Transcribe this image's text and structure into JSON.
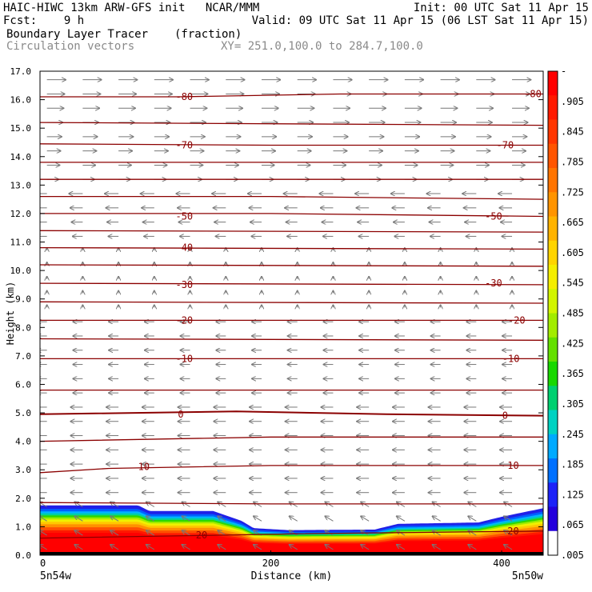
{
  "header": {
    "line1_left": "HAIC-HIWC 13km ARW-GFS init   NCAR/MMM",
    "line1_right": "Init: 00 UTC Sat 11 Apr 15",
    "line2_left": "Fcst:    9 h",
    "line2_right": "Valid: 09 UTC Sat 11 Apr 15 (06 LST Sat 11 Apr 15)",
    "line3_left": "Boundary Layer Tracer",
    "line3_mid": "(fraction)",
    "line4_left": "Circulation vectors",
    "line4_mid": "XY= 251.0,100.0 to 284.7,100.0"
  },
  "chart_data": {
    "type": "heatmap",
    "xlabel": "Distance (km)",
    "ylabel": "Height (km)",
    "xlim": [
      0,
      436
    ],
    "ylim": [
      0,
      17
    ],
    "x_ticks": [
      0,
      200,
      400
    ],
    "x_tick_labels": [
      "0",
      "200",
      "400"
    ],
    "x_end_labels": [
      "5n54w",
      "5n50w"
    ],
    "y_ticks": [
      0,
      1,
      2,
      3,
      4,
      5,
      6,
      7,
      8,
      9,
      10,
      11,
      12,
      13,
      14,
      15,
      16,
      17
    ],
    "y_tick_labels": [
      "0.0",
      "1.0",
      "2.0",
      "3.0",
      "4.0",
      "5.0",
      "6.0",
      "7.0",
      "8.0",
      "9.0",
      "10.0",
      "11.0",
      "12.0",
      "13.0",
      "14.0",
      "15.0",
      "16.0",
      "17.0"
    ],
    "colorbar": {
      "labels": [
        "-",
        ".905",
        ".845",
        ".785",
        ".725",
        ".665",
        ".605",
        ".545",
        ".485",
        ".425",
        ".365",
        ".305",
        ".245",
        ".185",
        ".125",
        ".065",
        ".005"
      ],
      "colors": [
        "#ff0000",
        "#ff1a00",
        "#ff3600",
        "#ff5500",
        "#ff7400",
        "#ff9400",
        "#ffb300",
        "#ffd400",
        "#f5ee00",
        "#d2f500",
        "#a2ec00",
        "#64e000",
        "#18d800",
        "#00d070",
        "#00d2c2",
        "#00aaff",
        "#0070ff",
        "#1c22f8",
        "#2400dc",
        "#ffffff"
      ]
    },
    "tracer_top_km": [
      {
        "x": 0,
        "y": 1.75
      },
      {
        "x": 85,
        "y": 1.75
      },
      {
        "x": 95,
        "y": 1.55
      },
      {
        "x": 150,
        "y": 1.55
      },
      {
        "x": 175,
        "y": 1.2
      },
      {
        "x": 185,
        "y": 0.95
      },
      {
        "x": 215,
        "y": 0.88
      },
      {
        "x": 290,
        "y": 0.9
      },
      {
        "x": 310,
        "y": 1.1
      },
      {
        "x": 380,
        "y": 1.15
      },
      {
        "x": 400,
        "y": 1.35
      },
      {
        "x": 436,
        "y": 1.65
      }
    ],
    "temperature_contours": [
      {
        "label": "-80",
        "points": [
          [
            0,
            16.1
          ],
          [
            120,
            16.1
          ],
          [
            260,
            16.2
          ],
          [
            436,
            16.2
          ]
        ],
        "label_positions": [
          [
            125,
            16.1
          ],
          [
            427,
            16.2
          ]
        ]
      },
      {
        "label": null,
        "points": [
          [
            0,
            15.2
          ],
          [
            436,
            15.1
          ]
        ],
        "label_positions": []
      },
      {
        "label": "-70",
        "points": [
          [
            0,
            14.45
          ],
          [
            200,
            14.4
          ],
          [
            436,
            14.4
          ]
        ],
        "label_positions": [
          [
            125,
            14.4
          ],
          [
            403,
            14.4
          ]
        ]
      },
      {
        "label": null,
        "points": [
          [
            0,
            13.8
          ],
          [
            436,
            13.8
          ]
        ],
        "label_positions": []
      },
      {
        "label": null,
        "points": [
          [
            0,
            13.2
          ],
          [
            436,
            13.2
          ]
        ],
        "label_positions": []
      },
      {
        "label": null,
        "points": [
          [
            0,
            12.6
          ],
          [
            200,
            12.6
          ],
          [
            436,
            12.5
          ]
        ],
        "label_positions": []
      },
      {
        "label": "-50",
        "points": [
          [
            0,
            12.0
          ],
          [
            200,
            12.0
          ],
          [
            436,
            11.9
          ]
        ],
        "label_positions": [
          [
            125,
            11.9
          ],
          [
            393,
            11.9
          ]
        ]
      },
      {
        "label": null,
        "points": [
          [
            0,
            11.4
          ],
          [
            436,
            11.35
          ]
        ],
        "label_positions": []
      },
      {
        "label": "-40",
        "points": [
          [
            0,
            10.8
          ],
          [
            436,
            10.75
          ]
        ],
        "label_positions": [
          [
            125,
            10.8
          ]
        ]
      },
      {
        "label": null,
        "points": [
          [
            0,
            10.2
          ],
          [
            436,
            10.15
          ]
        ],
        "label_positions": []
      },
      {
        "label": "-30",
        "points": [
          [
            0,
            9.55
          ],
          [
            436,
            9.5
          ]
        ],
        "label_positions": [
          [
            125,
            9.5
          ],
          [
            393,
            9.55
          ]
        ]
      },
      {
        "label": null,
        "points": [
          [
            0,
            8.9
          ],
          [
            436,
            8.85
          ]
        ],
        "label_positions": []
      },
      {
        "label": "-20",
        "points": [
          [
            0,
            8.25
          ],
          [
            436,
            8.25
          ]
        ],
        "label_positions": [
          [
            125,
            8.25
          ],
          [
            413,
            8.25
          ]
        ]
      },
      {
        "label": null,
        "points": [
          [
            0,
            7.6
          ],
          [
            436,
            7.55
          ]
        ],
        "label_positions": []
      },
      {
        "label": "-10",
        "points": [
          [
            0,
            6.9
          ],
          [
            436,
            6.9
          ]
        ],
        "label_positions": [
          [
            125,
            6.9
          ],
          [
            408,
            6.9
          ]
        ]
      },
      {
        "label": null,
        "points": [
          [
            0,
            5.8
          ],
          [
            436,
            5.8
          ]
        ],
        "label_positions": []
      },
      {
        "label": "0",
        "points": [
          [
            0,
            4.95
          ],
          [
            170,
            5.05
          ],
          [
            300,
            4.95
          ],
          [
            436,
            4.9
          ]
        ],
        "label_positions": [
          [
            122,
            4.95
          ],
          [
            403,
            4.9
          ]
        ]
      },
      {
        "label": null,
        "points": [
          [
            0,
            4.0
          ],
          [
            200,
            4.15
          ],
          [
            436,
            4.15
          ]
        ],
        "label_positions": []
      },
      {
        "label": "10",
        "points": [
          [
            0,
            2.9
          ],
          [
            60,
            3.05
          ],
          [
            200,
            3.15
          ],
          [
            436,
            3.15
          ]
        ],
        "label_positions": [
          [
            90,
            3.1
          ],
          [
            410,
            3.15
          ]
        ]
      },
      {
        "label": null,
        "points": [
          [
            0,
            1.85
          ],
          [
            200,
            1.8
          ],
          [
            436,
            1.8
          ]
        ],
        "label_positions": []
      },
      {
        "label": "20",
        "points": [
          [
            0,
            0.6
          ],
          [
            150,
            0.7
          ],
          [
            220,
            0.75
          ],
          [
            436,
            0.85
          ]
        ],
        "label_positions": [
          [
            140,
            0.7
          ],
          [
            410,
            0.85
          ]
        ]
      }
    ]
  }
}
